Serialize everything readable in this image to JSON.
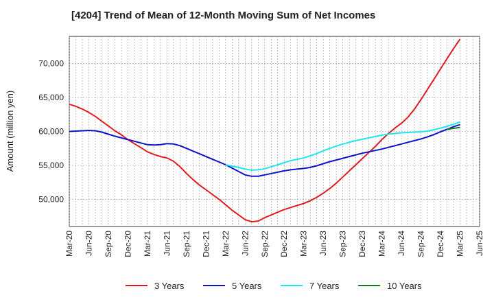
{
  "title": "[4204]  Trend of Mean of 12-Month Moving Sum of Net Incomes",
  "chart_data": {
    "type": "line",
    "title": "[4204]  Trend of Mean of 12-Month Moving Sum of Net Incomes",
    "xlabel": "",
    "ylabel": "Amount (million yen)",
    "x_ticks": [
      "Mar-20",
      "Jun-20",
      "Sep-20",
      "Dec-20",
      "Mar-21",
      "Jun-21",
      "Sep-21",
      "Dec-21",
      "Mar-22",
      "Jun-22",
      "Sep-22",
      "Dec-22",
      "Mar-23",
      "Jun-23",
      "Sep-23",
      "Dec-23",
      "Mar-24",
      "Jun-24",
      "Sep-24",
      "Dec-24",
      "Mar-25",
      "Jun-25"
    ],
    "y_ticks": [
      50000,
      55000,
      60000,
      65000,
      70000
    ],
    "y_tick_labels": [
      "50,000",
      "55,000",
      "60,000",
      "65,000",
      "70,000"
    ],
    "ylim": [
      46000,
      74000
    ],
    "grid": true,
    "legend_position": "bottom",
    "series": [
      {
        "name": "3 Years",
        "color": "#e31a1c",
        "x": [
          "2020-03",
          "2020-04",
          "2020-05",
          "2020-06",
          "2020-07",
          "2020-08",
          "2020-09",
          "2020-10",
          "2020-11",
          "2020-12",
          "2021-01",
          "2021-02",
          "2021-03",
          "2021-04",
          "2021-05",
          "2021-06",
          "2021-07",
          "2021-08",
          "2021-09",
          "2021-10",
          "2021-11",
          "2021-12",
          "2022-01",
          "2022-02",
          "2022-03",
          "2022-04",
          "2022-05",
          "2022-06",
          "2022-07",
          "2022-08",
          "2022-09",
          "2022-10",
          "2022-11",
          "2022-12",
          "2023-01",
          "2023-02",
          "2023-03",
          "2023-04",
          "2023-05",
          "2023-06",
          "2023-07",
          "2023-08",
          "2023-09",
          "2023-10",
          "2023-11",
          "2023-12",
          "2024-01",
          "2024-02",
          "2024-03",
          "2024-04",
          "2024-05",
          "2024-06",
          "2024-07",
          "2024-08",
          "2024-09",
          "2024-10",
          "2024-11",
          "2024-12",
          "2025-01",
          "2025-02",
          "2025-03"
        ],
        "values": [
          64000,
          63700,
          63300,
          62800,
          62200,
          61500,
          60800,
          60100,
          59500,
          58800,
          58200,
          57600,
          57000,
          56600,
          56300,
          56100,
          55600,
          54800,
          53800,
          52900,
          52100,
          51400,
          50700,
          50000,
          49200,
          48400,
          47700,
          47000,
          46700,
          46800,
          47300,
          47700,
          48100,
          48500,
          48800,
          49100,
          49400,
          49800,
          50300,
          50900,
          51600,
          52400,
          53300,
          54200,
          55100,
          56000,
          56900,
          57800,
          58800,
          59700,
          60500,
          61200,
          62100,
          63300,
          64700,
          66200,
          67700,
          69200,
          70700,
          72200,
          73600
        ]
      },
      {
        "name": "5 Years",
        "color": "#0a14c8",
        "x": [
          "2020-03",
          "2020-04",
          "2020-05",
          "2020-06",
          "2020-07",
          "2020-08",
          "2020-09",
          "2020-10",
          "2020-11",
          "2020-12",
          "2021-01",
          "2021-02",
          "2021-03",
          "2021-04",
          "2021-05",
          "2021-06",
          "2021-07",
          "2021-08",
          "2021-09",
          "2021-10",
          "2021-11",
          "2021-12",
          "2022-01",
          "2022-02",
          "2022-03",
          "2022-04",
          "2022-05",
          "2022-06",
          "2022-07",
          "2022-08",
          "2022-09",
          "2022-10",
          "2022-11",
          "2022-12",
          "2023-01",
          "2023-02",
          "2023-03",
          "2023-04",
          "2023-05",
          "2023-06",
          "2023-07",
          "2023-08",
          "2023-09",
          "2023-10",
          "2023-11",
          "2023-12",
          "2024-01",
          "2024-02",
          "2024-03",
          "2024-04",
          "2024-05",
          "2024-06",
          "2024-07",
          "2024-08",
          "2024-09",
          "2024-10",
          "2024-11",
          "2024-12",
          "2025-01",
          "2025-02",
          "2025-03"
        ],
        "values": [
          60000,
          60050,
          60100,
          60150,
          60100,
          59900,
          59600,
          59300,
          59050,
          58800,
          58550,
          58300,
          58050,
          58000,
          58050,
          58200,
          58150,
          57900,
          57500,
          57100,
          56700,
          56300,
          55900,
          55500,
          55100,
          54600,
          54100,
          53600,
          53400,
          53400,
          53600,
          53800,
          54000,
          54200,
          54350,
          54450,
          54550,
          54700,
          54950,
          55250,
          55550,
          55800,
          56050,
          56300,
          56550,
          56800,
          57000,
          57200,
          57400,
          57650,
          57900,
          58150,
          58400,
          58650,
          58900,
          59200,
          59550,
          59950,
          60300,
          60700,
          61000
        ]
      },
      {
        "name": "7 Years",
        "color": "#1ee6f0",
        "x": [
          "2022-03",
          "2022-04",
          "2022-05",
          "2022-06",
          "2022-07",
          "2022-08",
          "2022-09",
          "2022-10",
          "2022-11",
          "2022-12",
          "2023-01",
          "2023-02",
          "2023-03",
          "2023-04",
          "2023-05",
          "2023-06",
          "2023-07",
          "2023-08",
          "2023-09",
          "2023-10",
          "2023-11",
          "2023-12",
          "2024-01",
          "2024-02",
          "2024-03",
          "2024-04",
          "2024-05",
          "2024-06",
          "2024-07",
          "2024-08",
          "2024-09",
          "2024-10",
          "2024-11",
          "2024-12",
          "2025-01",
          "2025-02",
          "2025-03"
        ],
        "values": [
          55100,
          54900,
          54700,
          54450,
          54300,
          54350,
          54500,
          54800,
          55100,
          55400,
          55700,
          55900,
          56100,
          56400,
          56750,
          57150,
          57500,
          57850,
          58150,
          58400,
          58650,
          58850,
          59050,
          59250,
          59450,
          59600,
          59700,
          59800,
          59850,
          59900,
          59950,
          60050,
          60250,
          60500,
          60750,
          61050,
          61400
        ]
      },
      {
        "name": "10 Years",
        "color": "#1a7a1a",
        "x": [
          "2025-01",
          "2025-02",
          "2025-03"
        ],
        "values": [
          60300,
          60450,
          60600
        ]
      }
    ]
  }
}
